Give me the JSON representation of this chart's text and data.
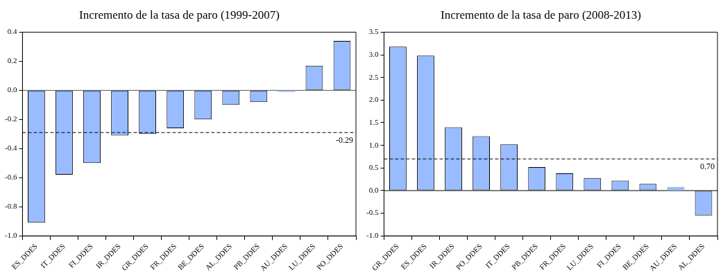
{
  "chart_data": [
    {
      "type": "bar",
      "title": "Incremento de la tasa de paro (1999-2007)",
      "categories": [
        "ES_DDES",
        "IT_DDES",
        "FI_DDES",
        "IR_DDES",
        "GR_DDES",
        "FR_DDES",
        "BE_DDES",
        "AL_DDES",
        "PB_DDES",
        "AU_DDES",
        "LU_DDES",
        "PO_DDES"
      ],
      "values": [
        -0.91,
        -0.58,
        -0.5,
        -0.31,
        -0.3,
        -0.26,
        -0.2,
        -0.1,
        -0.08,
        -0.01,
        0.17,
        0.34
      ],
      "color": "#99bbff",
      "ylim": [
        -1.0,
        0.4
      ],
      "yticks": [
        {
          "value": -1.0,
          "label": "-1.0"
        },
        {
          "value": -0.8,
          "label": "-0.8"
        },
        {
          "value": -0.6,
          "label": "-0.6"
        },
        {
          "value": -0.4,
          "label": "-0.4"
        },
        {
          "value": -0.2,
          "label": "-0.2"
        },
        {
          "value": 0,
          "label": "0.0"
        },
        0.2,
        0.4
      ],
      "grid": false,
      "legend": false,
      "ref_lines": [
        {
          "axis": "y",
          "value": 0,
          "label": null,
          "color": "#555555",
          "line_style": "solid"
        },
        {
          "axis": "y",
          "value": -0.29,
          "label": "-0.29",
          "line_style": "dashed"
        }
      ]
    },
    {
      "type": "bar",
      "title": "Incremento de la tasa de paro (2008-2013)",
      "categories": [
        "GR_DDES",
        "ES_DDES",
        "IR_DDES",
        "PO_DDES",
        "IT_DDES",
        "PB_DDES",
        "FR_DDES",
        "LU_DDES",
        "FI_DDES",
        "BE_DDES",
        "AU_DDES",
        "AL_DDES"
      ],
      "values": [
        3.18,
        2.98,
        1.4,
        1.2,
        1.02,
        0.52,
        0.38,
        0.28,
        0.22,
        0.15,
        0.08,
        -0.55
      ],
      "color": "#99bbff",
      "ylim": [
        -1.0,
        3.5
      ],
      "yticks": [
        {
          "value": -1.0,
          "label": "-1.0"
        },
        -0.5,
        {
          "value": 0,
          "label": "0.0"
        },
        0.5,
        {
          "value": 1,
          "label": "1.0"
        },
        1.5,
        {
          "value": 2,
          "label": "2.0"
        },
        2.5,
        {
          "value": 3,
          "label": "3.0"
        },
        3.5
      ],
      "grid": false,
      "legend": false,
      "ref_lines": [
        {
          "axis": "y",
          "value": 0,
          "label": null,
          "color": "#000000",
          "line_style": "solid"
        },
        {
          "axis": "y",
          "value": 0.7,
          "label": "0.70",
          "line_style": "dashed"
        }
      ]
    }
  ]
}
